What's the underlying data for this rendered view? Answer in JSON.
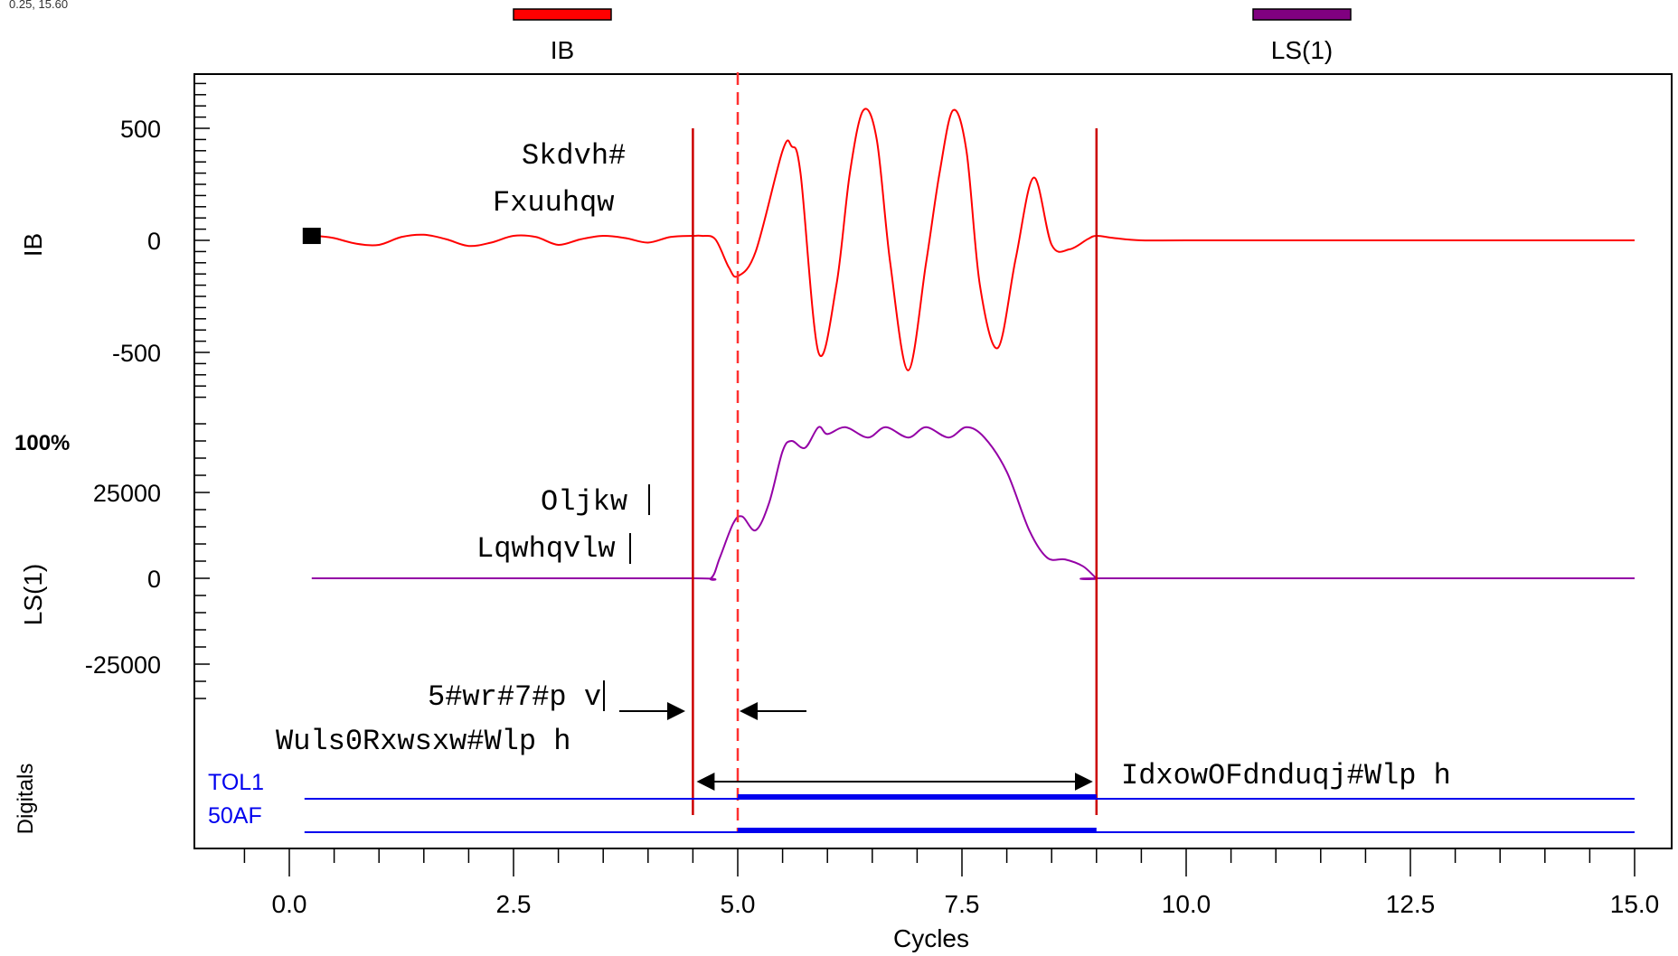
{
  "cursor_readout": "0.25, 15.60",
  "legend": [
    {
      "label": "IB",
      "color": "#ff0000"
    },
    {
      "label": "LS(1)",
      "color": "#800080"
    }
  ],
  "colors": {
    "ib": "#ff0000",
    "ls": "#9400a6",
    "digital": "#0000ee",
    "marker": "#cc0000",
    "axis": "#000000"
  },
  "annotations": {
    "phase_current": [
      "Skdvh#",
      "Fxuuhqw"
    ],
    "flight_instability": [
      "Oljkw",
      "Lqwhqvlw"
    ],
    "pickup_delay": [
      "5#wr#7#p v"
    ],
    "trip_output_time": "Wuls0Rxwsxw#Wlp h",
    "fault_clearing_time": "IdxowOFdnduqj#Wlp h",
    "pct_label": "100%"
  },
  "chart_data": {
    "type": "line",
    "xlabel": "Cycles",
    "xlim": [
      -1.0,
      15.3
    ],
    "xticks": [
      "0.0",
      "2.5",
      "5.0",
      "7.5",
      "10.0",
      "12.5",
      "15.0"
    ],
    "xtick_values": [
      0.0,
      2.5,
      5.0,
      7.5,
      10.0,
      12.5,
      15.0
    ],
    "markers": {
      "solid": [
        4.5,
        9.0
      ],
      "dashed": [
        5.0
      ]
    },
    "panels": [
      {
        "name": "IB",
        "ylabel": "IB",
        "ylim": [
          -700,
          720
        ],
        "yticks": [
          "500",
          "0",
          "-500"
        ],
        "ytick_values": [
          500,
          0,
          -500
        ],
        "series": [
          {
            "name": "IB",
            "x": [
              0.25,
              0.35,
              0.5,
              0.75,
              1.0,
              1.25,
              1.5,
              1.75,
              2.0,
              2.25,
              2.5,
              2.75,
              3.0,
              3.25,
              3.5,
              3.75,
              4.0,
              4.25,
              4.5,
              4.6,
              4.75,
              4.9,
              5.0,
              5.2,
              5.5,
              5.6,
              5.7,
              5.9,
              6.1,
              6.25,
              6.4,
              6.55,
              6.7,
              6.9,
              7.1,
              7.25,
              7.4,
              7.55,
              7.7,
              7.9,
              8.1,
              8.3,
              8.5,
              8.7,
              8.9,
              9.0,
              9.2,
              9.5,
              10.0,
              12.0,
              15.0
            ],
            "y": [
              20,
              18,
              10,
              -15,
              -20,
              15,
              25,
              5,
              -25,
              -10,
              20,
              15,
              -20,
              5,
              20,
              10,
              -10,
              15,
              20,
              20,
              5,
              -120,
              -160,
              -50,
              400,
              420,
              300,
              -500,
              -200,
              300,
              580,
              450,
              -100,
              -580,
              -100,
              300,
              580,
              400,
              -200,
              -480,
              -80,
              280,
              -20,
              -40,
              5,
              20,
              10,
              0,
              0,
              0,
              0
            ]
          }
        ]
      },
      {
        "name": "LS(1)",
        "ylabel": "LS(1)",
        "ylim": [
          -44000,
          50000
        ],
        "yticks": [
          "25000",
          "0",
          "-25000"
        ],
        "ytick_values": [
          25000,
          0,
          -25000
        ],
        "series": [
          {
            "name": "LS(1)",
            "x": [
              0.25,
              2.0,
              4.5,
              4.7,
              4.8,
              4.95,
              5.05,
              5.2,
              5.35,
              5.5,
              5.6,
              5.75,
              5.9,
              6.0,
              6.2,
              6.45,
              6.65,
              6.9,
              7.1,
              7.35,
              7.55,
              7.75,
              8.0,
              8.25,
              8.45,
              8.65,
              8.85,
              9.0,
              9.05,
              12.0,
              15.0
            ],
            "y": [
              0,
              0,
              0,
              0,
              6000,
              16000,
              18000,
              14000,
              22000,
              37000,
              40000,
              38000,
              44000,
              42000,
              44000,
              41000,
              44000,
              41000,
              44000,
              41000,
              44000,
              41000,
              31000,
              14000,
              6000,
              5500,
              3500,
              0,
              0,
              0,
              0
            ]
          }
        ]
      }
    ],
    "digitals": {
      "ylabel": "Digitals",
      "channels": [
        {
          "name": "TOL1",
          "on_start": 5.0,
          "on_end": 9.0
        },
        {
          "name": "50AF",
          "on_start": 5.0,
          "on_end": 9.0
        }
      ],
      "x_start": 0.25,
      "x_end": 15.0
    }
  }
}
